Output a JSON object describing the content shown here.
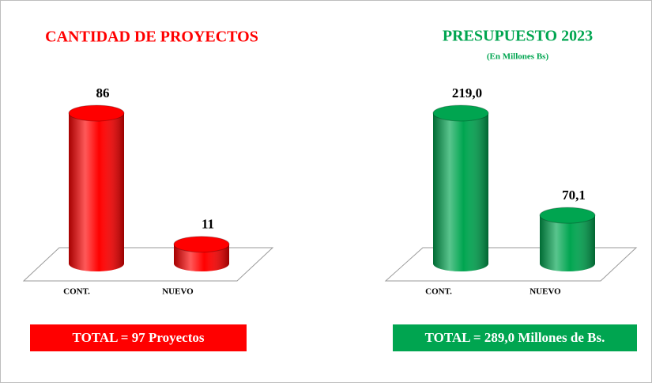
{
  "chart_data": [
    {
      "type": "bar",
      "title": "CANTIDAD DE PROYECTOS",
      "categories": [
        "CONT.",
        "NUEVO"
      ],
      "values": [
        86,
        11
      ],
      "color": "#ff0000",
      "annotation": "TOTAL = 97 Proyectos"
    },
    {
      "type": "bar",
      "title": "PRESUPUESTO 2023",
      "subtitle": "(En Millones Bs)",
      "categories": [
        "CONT.",
        "NUEVO"
      ],
      "values": [
        219.0,
        70.1
      ],
      "value_labels": [
        "219,0",
        "70,1"
      ],
      "color": "#00a550",
      "annotation": "TOTAL = 289,0 Millones de Bs."
    }
  ]
}
